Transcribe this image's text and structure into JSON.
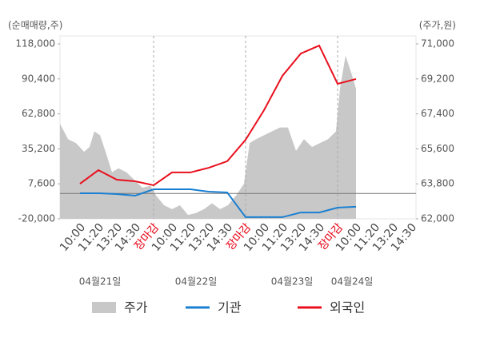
{
  "chart_data": {
    "type": "line",
    "y_axis_title": "(순매매량,주)",
    "y2_axis_title": "(주가,원)",
    "categories": [
      "10:00",
      "11:20",
      "13:20",
      "14:30",
      "장마감",
      "10:00",
      "11:20",
      "13:20",
      "14:30",
      "장마감",
      "10:00",
      "11:20",
      "13:20",
      "14:30",
      "장마감",
      "10:00",
      "11:20",
      "13:20",
      "14:30"
    ],
    "x_highlight_indices": [
      4,
      9,
      14
    ],
    "x_highlight_color": "#e60012",
    "date_labels": [
      "04월21일",
      "04월22일",
      "04월23일",
      "04월24일"
    ],
    "ylim": [
      -20000,
      118000
    ],
    "yticks": [
      {
        "value": -20000,
        "label": "-20,000"
      },
      {
        "value": 7600,
        "label": "7,600"
      },
      {
        "value": 35200,
        "label": "35,200"
      },
      {
        "value": 62800,
        "label": "62,800"
      },
      {
        "value": 90400,
        "label": "90,400"
      },
      {
        "value": 118000,
        "label": "118,000"
      }
    ],
    "y2lim": [
      62000,
      71000
    ],
    "y2ticks": [
      {
        "value": 62000,
        "label": "62,000"
      },
      {
        "value": 63800,
        "label": "63,800"
      },
      {
        "value": 65600,
        "label": "65,600"
      },
      {
        "value": 67400,
        "label": "67,400"
      },
      {
        "value": 69200,
        "label": "69,200"
      },
      {
        "value": 71000,
        "label": "71,000"
      }
    ],
    "series": [
      {
        "name": "주가",
        "color": "#c8c8c8",
        "axis": "y2",
        "kind": "area",
        "x": [
          -1.09,
          -0.65,
          -0.22,
          0.22,
          0.52,
          0.78,
          1.09,
          1.39,
          1.74,
          2.09,
          2.52,
          2.96,
          3.39,
          3.83,
          4.13,
          4.57,
          5,
          5.43,
          5.87,
          6.3,
          6.74,
          7.17,
          7.61,
          8.04,
          8.48,
          8.91,
          9.22,
          9.57,
          10,
          10.43,
          10.87,
          11.3,
          11.74,
          12.17,
          12.61,
          13.04,
          13.48,
          13.91,
          14.13,
          14.43,
          14.78,
          15
        ],
        "values": [
          66900,
          66100,
          65900,
          65450,
          65700,
          66500,
          66300,
          65450,
          64400,
          64600,
          64400,
          64000,
          63600,
          63700,
          63200,
          62700,
          62500,
          62700,
          62200,
          62300,
          62500,
          62800,
          62500,
          62700,
          63200,
          63800,
          65900,
          66100,
          66300,
          66500,
          66700,
          66700,
          65500,
          66100,
          65700,
          65900,
          66100,
          66500,
          68700,
          70400,
          69400,
          68700
        ]
      },
      {
        "name": "기관",
        "color": "#1a7fd1",
        "values": [
          200,
          200,
          -500,
          -1700,
          3300,
          3300,
          3300,
          1400,
          800,
          -18700,
          -18700,
          -18700,
          -15000,
          -15000,
          -11200,
          -10500,
          null,
          null,
          null
        ]
      },
      {
        "name": "외국인",
        "color": "#e8101d",
        "values": [
          7700,
          18400,
          10900,
          9600,
          6500,
          16600,
          16600,
          20300,
          25400,
          42400,
          65700,
          92800,
          110400,
          116700,
          86500,
          90300,
          null,
          null,
          null
        ]
      }
    ]
  }
}
